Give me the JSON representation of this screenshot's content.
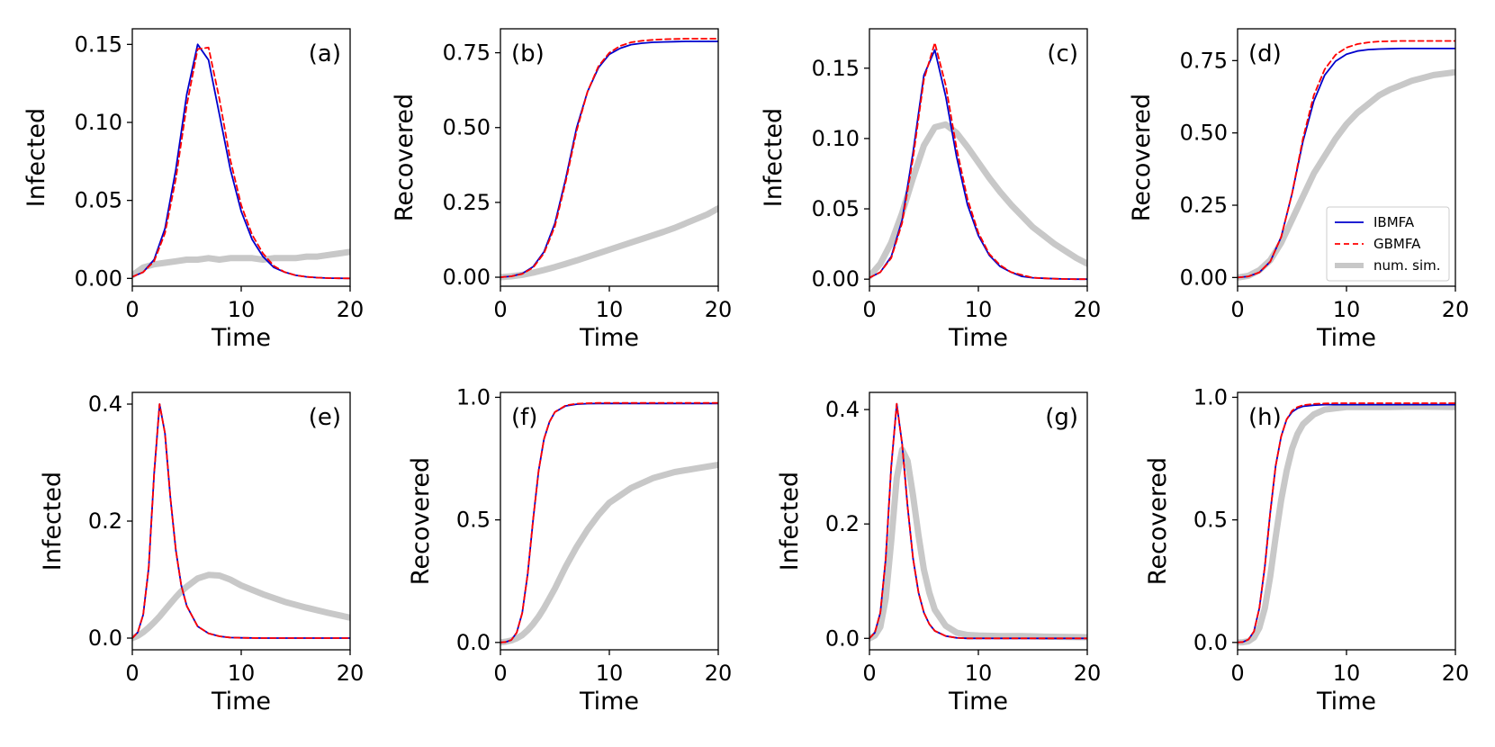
{
  "colors": {
    "IBMFA": "#0000cc",
    "GBMFA": "#ff0000",
    "sim": "#c8c8c8"
  },
  "legend": {
    "panel": "d",
    "location": "lower-right",
    "entries": [
      {
        "label": "IBMFA",
        "style": "solid",
        "color": "#0000cc"
      },
      {
        "label": "GBMFA",
        "style": "dashed",
        "color": "#ff0000"
      },
      {
        "label": "num. sim.",
        "style": "thick",
        "color": "#c8c8c8"
      }
    ]
  },
  "chart_data": [
    {
      "type": "line",
      "panel": "(a)",
      "xlabel": "Time",
      "ylabel": "Infected",
      "xlim": [
        0,
        20
      ],
      "ylim": [
        -0.005,
        0.16
      ],
      "xticks": [
        "0",
        "10",
        "20"
      ],
      "xtick_values": [
        0,
        10,
        20
      ],
      "yticks": [
        "0.00",
        "0.05",
        "0.10",
        "0.15"
      ],
      "ytick_values": [
        0,
        0.05,
        0.1,
        0.15
      ],
      "x": [
        0,
        1,
        2,
        3,
        4,
        5,
        6,
        7,
        8,
        9,
        10,
        11,
        12,
        13,
        14,
        15,
        16,
        17,
        18,
        19,
        20
      ],
      "series": [
        {
          "name": "IBMFA",
          "values": [
            0.001,
            0.004,
            0.012,
            0.032,
            0.07,
            0.118,
            0.15,
            0.14,
            0.105,
            0.07,
            0.043,
            0.025,
            0.014,
            0.007,
            0.004,
            0.002,
            0.001,
            0.0005,
            0.0002,
            0.0001,
            0
          ]
        },
        {
          "name": "GBMFA",
          "values": [
            0.001,
            0.004,
            0.011,
            0.029,
            0.064,
            0.111,
            0.147,
            0.148,
            0.115,
            0.076,
            0.047,
            0.028,
            0.016,
            0.008,
            0.004,
            0.002,
            0.001,
            0.0005,
            0.0002,
            0.0001,
            0
          ]
        },
        {
          "name": "num. sim.",
          "values": [
            0.002,
            0.007,
            0.009,
            0.01,
            0.011,
            0.012,
            0.012,
            0.013,
            0.012,
            0.013,
            0.013,
            0.013,
            0.012,
            0.013,
            0.013,
            0.013,
            0.014,
            0.014,
            0.015,
            0.016,
            0.017
          ]
        }
      ]
    },
    {
      "type": "line",
      "panel": "(b)",
      "xlabel": "Time",
      "ylabel": "Recovered",
      "xlim": [
        0,
        20
      ],
      "ylim": [
        -0.03,
        0.83
      ],
      "xticks": [
        "0",
        "10",
        "20"
      ],
      "xtick_values": [
        0,
        10,
        20
      ],
      "yticks": [
        "0.00",
        "0.25",
        "0.50",
        "0.75"
      ],
      "ytick_values": [
        0,
        0.25,
        0.5,
        0.75
      ],
      "x": [
        0,
        1,
        2,
        3,
        4,
        5,
        6,
        7,
        8,
        9,
        10,
        11,
        12,
        13,
        14,
        15,
        16,
        17,
        18,
        19,
        20
      ],
      "series": [
        {
          "name": "IBMFA",
          "values": [
            0,
            0.003,
            0.012,
            0.035,
            0.085,
            0.18,
            0.33,
            0.5,
            0.62,
            0.7,
            0.745,
            0.765,
            0.777,
            0.782,
            0.785,
            0.786,
            0.787,
            0.788,
            0.788,
            0.788,
            0.788
          ]
        },
        {
          "name": "GBMFA",
          "values": [
            0,
            0.003,
            0.011,
            0.032,
            0.08,
            0.17,
            0.32,
            0.49,
            0.62,
            0.705,
            0.75,
            0.773,
            0.785,
            0.79,
            0.793,
            0.795,
            0.796,
            0.797,
            0.797,
            0.797,
            0.797
          ]
        },
        {
          "name": "num. sim.",
          "values": [
            0,
            0.003,
            0.008,
            0.015,
            0.024,
            0.034,
            0.045,
            0.056,
            0.068,
            0.08,
            0.092,
            0.104,
            0.116,
            0.128,
            0.14,
            0.152,
            0.165,
            0.18,
            0.195,
            0.21,
            0.23
          ]
        }
      ]
    },
    {
      "type": "line",
      "panel": "(c)",
      "xlabel": "Time",
      "ylabel": "Infected",
      "xlim": [
        0,
        20
      ],
      "ylim": [
        -0.005,
        0.178
      ],
      "xticks": [
        "0",
        "10",
        "20"
      ],
      "xtick_values": [
        0,
        10,
        20
      ],
      "yticks": [
        "0.00",
        "0.05",
        "0.10",
        "0.15"
      ],
      "ytick_values": [
        0,
        0.05,
        0.1,
        0.15
      ],
      "x": [
        0,
        1,
        2,
        3,
        4,
        5,
        6,
        7,
        8,
        9,
        10,
        11,
        12,
        13,
        14,
        15,
        16,
        17,
        18,
        19,
        20
      ],
      "series": [
        {
          "name": "IBMFA",
          "values": [
            0.001,
            0.005,
            0.016,
            0.042,
            0.09,
            0.145,
            0.163,
            0.13,
            0.087,
            0.053,
            0.031,
            0.017,
            0.009,
            0.005,
            0.002,
            0.001,
            0.0006,
            0.0003,
            0.0001,
            0,
            0
          ]
        },
        {
          "name": "GBMFA",
          "values": [
            0.001,
            0.005,
            0.015,
            0.04,
            0.086,
            0.142,
            0.168,
            0.138,
            0.093,
            0.057,
            0.033,
            0.018,
            0.01,
            0.005,
            0.003,
            0.001,
            0.0006,
            0.0003,
            0.0001,
            0,
            0
          ]
        },
        {
          "name": "num. sim.",
          "values": [
            0.002,
            0.011,
            0.026,
            0.047,
            0.072,
            0.095,
            0.108,
            0.11,
            0.104,
            0.094,
            0.083,
            0.072,
            0.062,
            0.053,
            0.045,
            0.037,
            0.031,
            0.025,
            0.02,
            0.015,
            0.011
          ]
        }
      ]
    },
    {
      "type": "line",
      "panel": "(d)",
      "xlabel": "Time",
      "ylabel": "Recovered",
      "xlim": [
        0,
        20
      ],
      "ylim": [
        -0.03,
        0.86
      ],
      "xticks": [
        "0",
        "10",
        "20"
      ],
      "xtick_values": [
        0,
        10,
        20
      ],
      "yticks": [
        "0.00",
        "0.25",
        "0.50",
        "0.75"
      ],
      "ytick_values": [
        0,
        0.25,
        0.5,
        0.75
      ],
      "x": [
        0,
        1,
        2,
        3,
        4,
        5,
        6,
        7,
        8,
        9,
        10,
        11,
        12,
        13,
        14,
        15,
        16,
        17,
        18,
        19,
        20
      ],
      "series": [
        {
          "name": "IBMFA",
          "values": [
            0,
            0.004,
            0.018,
            0.055,
            0.14,
            0.29,
            0.47,
            0.61,
            0.7,
            0.748,
            0.772,
            0.783,
            0.788,
            0.79,
            0.791,
            0.792,
            0.792,
            0.792,
            0.792,
            0.792,
            0.792
          ]
        },
        {
          "name": "GBMFA",
          "values": [
            0,
            0.004,
            0.018,
            0.055,
            0.14,
            0.29,
            0.48,
            0.63,
            0.72,
            0.77,
            0.795,
            0.807,
            0.813,
            0.816,
            0.817,
            0.818,
            0.818,
            0.818,
            0.818,
            0.818,
            0.818
          ]
        },
        {
          "name": "num. sim.",
          "values": [
            0,
            0.006,
            0.025,
            0.06,
            0.12,
            0.2,
            0.28,
            0.36,
            0.42,
            0.48,
            0.53,
            0.57,
            0.6,
            0.63,
            0.65,
            0.665,
            0.68,
            0.69,
            0.7,
            0.705,
            0.71
          ]
        }
      ]
    },
    {
      "type": "line",
      "panel": "(e)",
      "xlabel": "Time",
      "ylabel": "Infected",
      "xlim": [
        0,
        20
      ],
      "ylim": [
        -0.02,
        0.42
      ],
      "xticks": [
        "0",
        "10",
        "20"
      ],
      "xtick_values": [
        0,
        10,
        20
      ],
      "yticks": [
        "0.0",
        "0.2",
        "0.4"
      ],
      "ytick_values": [
        0,
        0.2,
        0.4
      ],
      "x": [
        0,
        0.5,
        1,
        1.5,
        2,
        2.5,
        3,
        3.5,
        4,
        4.5,
        5,
        6,
        7,
        8,
        9,
        10,
        12,
        14,
        16,
        18,
        20
      ],
      "series": [
        {
          "name": "IBMFA",
          "values": [
            0,
            0.01,
            0.04,
            0.12,
            0.28,
            0.4,
            0.35,
            0.24,
            0.15,
            0.09,
            0.055,
            0.02,
            0.008,
            0.003,
            0.001,
            0.0005,
            0,
            0,
            0,
            0,
            0
          ]
        },
        {
          "name": "GBMFA",
          "values": [
            0,
            0.01,
            0.04,
            0.12,
            0.28,
            0.4,
            0.35,
            0.24,
            0.15,
            0.09,
            0.055,
            0.02,
            0.008,
            0.003,
            0.001,
            0.0005,
            0,
            0,
            0,
            0,
            0
          ]
        },
        {
          "name": "num. sim.",
          "values": [
            0,
            0.004,
            0.01,
            0.018,
            0.027,
            0.037,
            0.048,
            0.059,
            0.07,
            0.08,
            0.088,
            0.102,
            0.108,
            0.107,
            0.1,
            0.09,
            0.075,
            0.062,
            0.052,
            0.043,
            0.035
          ]
        }
      ]
    },
    {
      "type": "line",
      "panel": "(f)",
      "xlabel": "Time",
      "ylabel": "Recovered",
      "xlim": [
        0,
        20
      ],
      "ylim": [
        -0.03,
        1.02
      ],
      "xticks": [
        "0",
        "10",
        "20"
      ],
      "xtick_values": [
        0,
        10,
        20
      ],
      "yticks": [
        "0.0",
        "0.5",
        "1.0"
      ],
      "ytick_values": [
        0,
        0.5,
        1.0
      ],
      "x": [
        0,
        0.5,
        1,
        1.5,
        2,
        2.5,
        3,
        3.5,
        4,
        4.5,
        5,
        6,
        7,
        8,
        9,
        10,
        12,
        14,
        16,
        18,
        20
      ],
      "series": [
        {
          "name": "IBMFA",
          "values": [
            0,
            0.002,
            0.01,
            0.04,
            0.12,
            0.28,
            0.5,
            0.7,
            0.83,
            0.9,
            0.94,
            0.965,
            0.972,
            0.974,
            0.975,
            0.975,
            0.975,
            0.975,
            0.975,
            0.975,
            0.975
          ]
        },
        {
          "name": "GBMFA",
          "values": [
            0,
            0.002,
            0.01,
            0.04,
            0.12,
            0.28,
            0.5,
            0.7,
            0.83,
            0.9,
            0.94,
            0.967,
            0.974,
            0.976,
            0.977,
            0.977,
            0.977,
            0.977,
            0.977,
            0.977,
            0.977
          ]
        },
        {
          "name": "num. sim.",
          "values": [
            0,
            0.003,
            0.008,
            0.017,
            0.03,
            0.05,
            0.075,
            0.105,
            0.14,
            0.18,
            0.22,
            0.31,
            0.39,
            0.46,
            0.52,
            0.57,
            0.63,
            0.67,
            0.695,
            0.71,
            0.725
          ]
        }
      ]
    },
    {
      "type": "line",
      "panel": "(g)",
      "xlabel": "Time",
      "ylabel": "Infected",
      "xlim": [
        0,
        20
      ],
      "ylim": [
        -0.02,
        0.43
      ],
      "xticks": [
        "0",
        "10",
        "20"
      ],
      "xtick_values": [
        0,
        10,
        20
      ],
      "yticks": [
        "0.0",
        "0.2",
        "0.4"
      ],
      "ytick_values": [
        0,
        0.2,
        0.4
      ],
      "x": [
        0,
        0.5,
        1,
        1.5,
        2,
        2.5,
        3,
        3.5,
        4,
        4.5,
        5,
        5.5,
        6,
        7,
        8,
        9,
        10,
        12,
        14,
        16,
        20
      ],
      "series": [
        {
          "name": "IBMFA",
          "values": [
            0,
            0.01,
            0.045,
            0.14,
            0.3,
            0.41,
            0.34,
            0.23,
            0.14,
            0.08,
            0.045,
            0.025,
            0.013,
            0.004,
            0.001,
            0,
            0,
            0,
            0,
            0,
            0
          ]
        },
        {
          "name": "GBMFA",
          "values": [
            0,
            0.01,
            0.045,
            0.14,
            0.3,
            0.41,
            0.34,
            0.23,
            0.14,
            0.08,
            0.045,
            0.025,
            0.013,
            0.004,
            0.001,
            0,
            0,
            0,
            0,
            0,
            0
          ]
        },
        {
          "name": "num. sim.",
          "values": [
            0,
            0.005,
            0.02,
            0.07,
            0.17,
            0.28,
            0.33,
            0.31,
            0.25,
            0.18,
            0.12,
            0.08,
            0.05,
            0.022,
            0.01,
            0.006,
            0.005,
            0.004,
            0.004,
            0.003,
            0.002
          ]
        }
      ]
    },
    {
      "type": "line",
      "panel": "(h)",
      "xlabel": "Time",
      "ylabel": "Recovered",
      "xlim": [
        0,
        20
      ],
      "ylim": [
        -0.03,
        1.02
      ],
      "xticks": [
        "0",
        "10",
        "20"
      ],
      "xtick_values": [
        0,
        10,
        20
      ],
      "yticks": [
        "0.0",
        "0.5",
        "1.0"
      ],
      "ytick_values": [
        0,
        0.5,
        1.0
      ],
      "x": [
        0,
        0.5,
        1,
        1.5,
        2,
        2.5,
        3,
        3.5,
        4,
        4.5,
        5,
        5.5,
        6,
        7,
        8,
        9,
        10,
        12,
        14,
        16,
        20
      ],
      "series": [
        {
          "name": "IBMFA",
          "values": [
            0,
            0.002,
            0.012,
            0.045,
            0.14,
            0.31,
            0.53,
            0.72,
            0.84,
            0.91,
            0.94,
            0.955,
            0.963,
            0.968,
            0.97,
            0.97,
            0.97,
            0.97,
            0.97,
            0.97,
            0.97
          ]
        },
        {
          "name": "GBMFA",
          "values": [
            0,
            0.002,
            0.012,
            0.045,
            0.14,
            0.31,
            0.53,
            0.72,
            0.84,
            0.91,
            0.945,
            0.96,
            0.968,
            0.973,
            0.975,
            0.976,
            0.976,
            0.976,
            0.976,
            0.976,
            0.976
          ]
        },
        {
          "name": "num. sim.",
          "values": [
            0,
            0.001,
            0.005,
            0.02,
            0.06,
            0.14,
            0.27,
            0.43,
            0.58,
            0.7,
            0.79,
            0.85,
            0.89,
            0.93,
            0.95,
            0.955,
            0.96,
            0.96,
            0.96,
            0.962,
            0.96
          ]
        }
      ]
    }
  ]
}
